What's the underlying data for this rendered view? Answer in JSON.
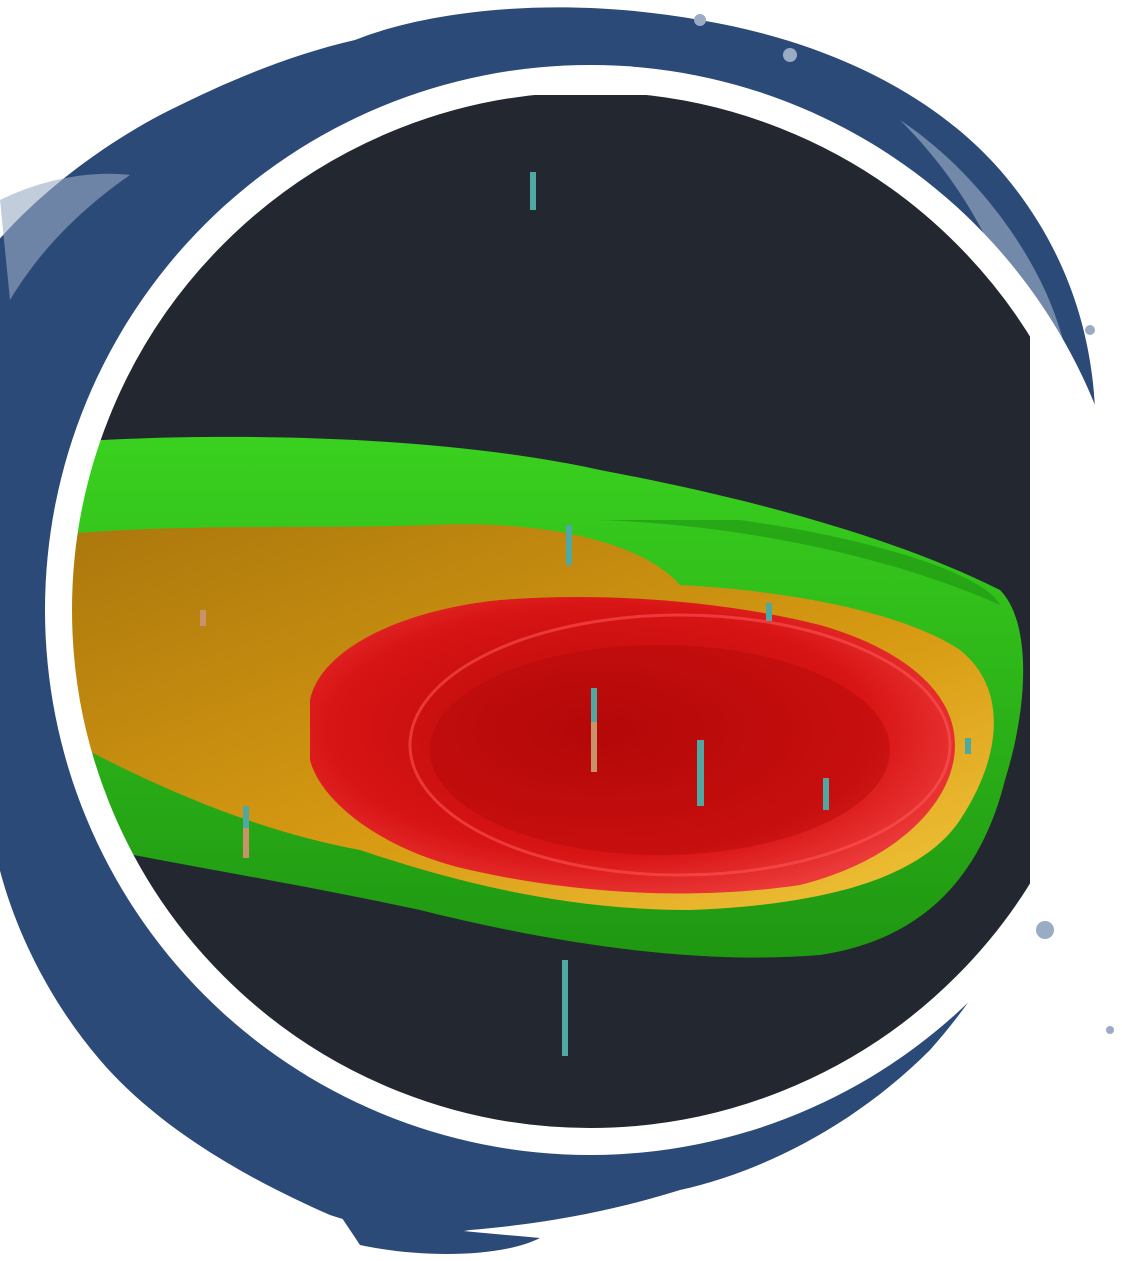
{
  "palette": {
    "background": "#ffffff",
    "splash_dark": "#2b4a78",
    "splash_mid": "#3f6496",
    "splash_light": "#9aabc4",
    "ring": "#ffffff",
    "viewport": "#23272f",
    "outer_shell": "#2fc21a",
    "outer_shell_dark": "#1c8e10",
    "middle_shell": "#d79a12",
    "middle_shell_light": "#f0c43a",
    "inner_core": "#d81414",
    "inner_core_dark": "#9e0808",
    "drillhole_teal": "#4fa9a2",
    "drillhole_tan": "#c9936a"
  },
  "icons": {
    "frame": "splash-frame-icon",
    "model": "orebody-model-icon"
  }
}
